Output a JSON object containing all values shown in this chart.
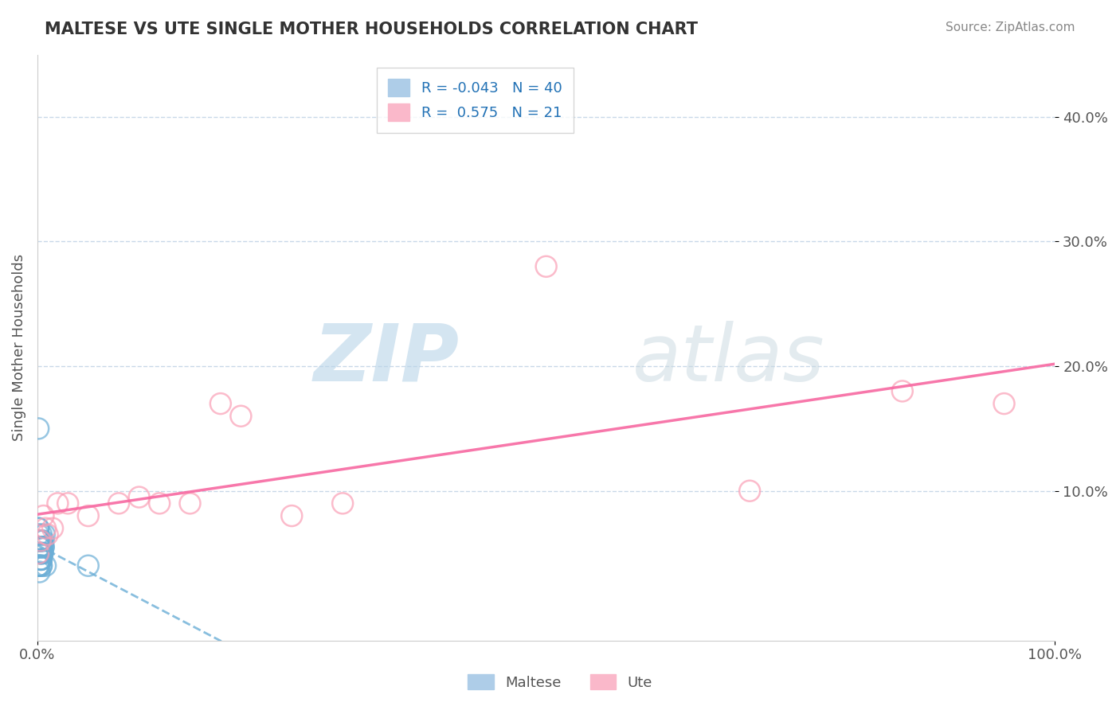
{
  "title": "MALTESE VS UTE SINGLE MOTHER HOUSEHOLDS CORRELATION CHART",
  "source": "Source: ZipAtlas.com",
  "xlabel": "",
  "ylabel": "Single Mother Households",
  "watermark_zip": "ZIP",
  "watermark_atlas": "atlas",
  "xlim": [
    0,
    1.0
  ],
  "ylim": [
    -0.02,
    0.45
  ],
  "maltese_R": -0.043,
  "maltese_N": 40,
  "ute_R": 0.575,
  "ute_N": 21,
  "maltese_color": "#6baed6",
  "ute_color": "#fa9fb5",
  "maltese_line_color": "#6baed6",
  "ute_line_color": "#f768a1",
  "legend_color": "#2171b5",
  "background_color": "#ffffff",
  "grid_color": "#c8d8e8",
  "maltese_x": [
    0.002,
    0.003,
    0.004,
    0.001,
    0.005,
    0.006,
    0.002,
    0.003,
    0.004,
    0.007,
    0.001,
    0.002,
    0.003,
    0.005,
    0.004,
    0.003,
    0.002,
    0.001,
    0.006,
    0.004,
    0.002,
    0.003,
    0.008,
    0.004,
    0.002,
    0.001,
    0.003,
    0.005,
    0.006,
    0.004,
    0.002,
    0.001,
    0.003,
    0.004,
    0.002,
    0.005,
    0.003,
    0.002,
    0.001,
    0.05
  ],
  "maltese_y": [
    0.06,
    0.05,
    0.04,
    0.07,
    0.05,
    0.06,
    0.04,
    0.05,
    0.055,
    0.065,
    0.04,
    0.06,
    0.05,
    0.055,
    0.045,
    0.05,
    0.06,
    0.07,
    0.055,
    0.06,
    0.05,
    0.045,
    0.04,
    0.065,
    0.055,
    0.04,
    0.06,
    0.05,
    0.055,
    0.045,
    0.035,
    0.065,
    0.055,
    0.04,
    0.06,
    0.05,
    0.045,
    0.055,
    0.15,
    0.04
  ],
  "ute_x": [
    0.001,
    0.003,
    0.006,
    0.008,
    0.01,
    0.015,
    0.02,
    0.03,
    0.05,
    0.08,
    0.1,
    0.12,
    0.15,
    0.18,
    0.2,
    0.25,
    0.3,
    0.5,
    0.7,
    0.85,
    0.95
  ],
  "ute_y": [
    0.05,
    0.06,
    0.08,
    0.07,
    0.065,
    0.07,
    0.09,
    0.09,
    0.08,
    0.09,
    0.095,
    0.09,
    0.09,
    0.17,
    0.16,
    0.08,
    0.09,
    0.28,
    0.1,
    0.18,
    0.17
  ]
}
